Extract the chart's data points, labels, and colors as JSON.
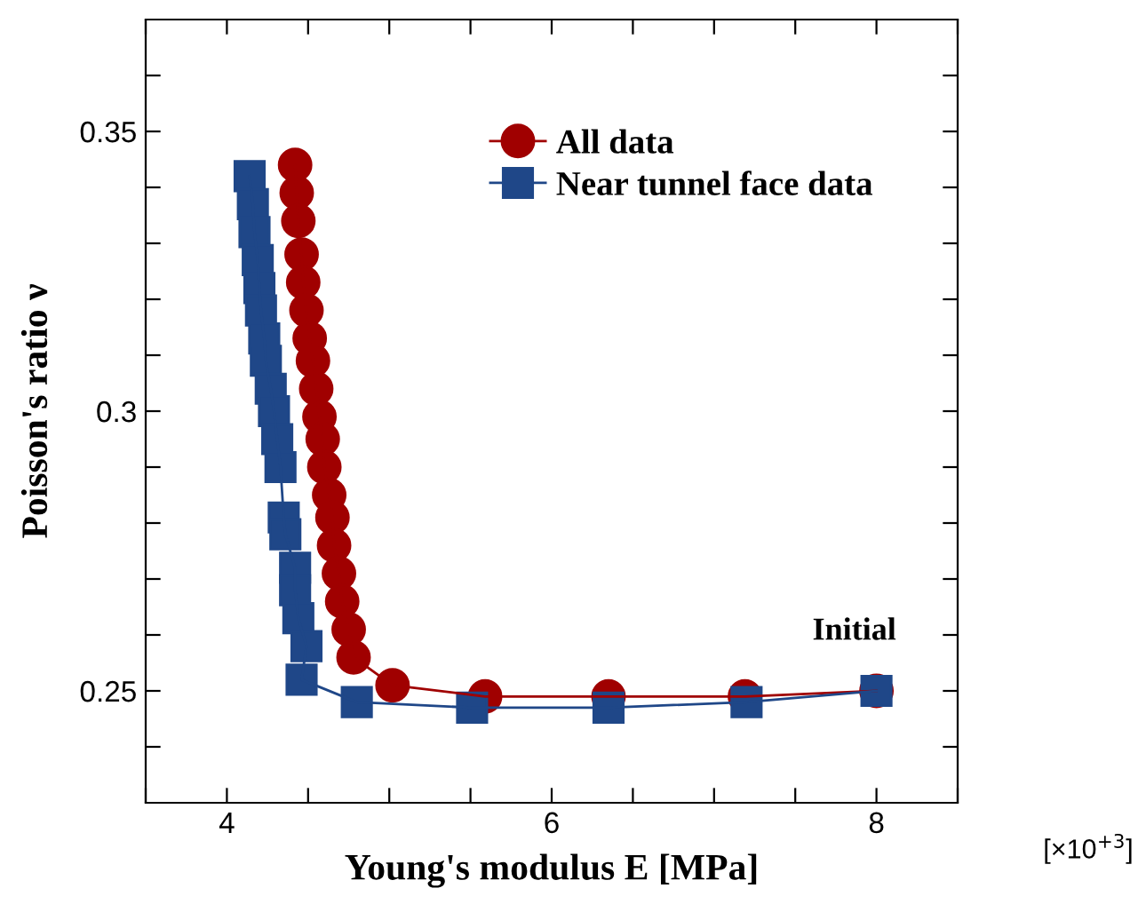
{
  "chart_data": {
    "type": "line",
    "xlabel": "Young's modulus E [MPa]",
    "ylabel": "Poisson's ratio ν",
    "annotations": [
      {
        "text": "Initial",
        "x": 8,
        "y": 0.25
      },
      "[×10$^{+3}$]"
    ],
    "series": [
      {
        "name": "All data",
        "color": "#a00000",
        "marker": "circle",
        "x": [
          4.42,
          4.43,
          4.44,
          4.46,
          4.47,
          4.49,
          4.51,
          4.53,
          4.55,
          4.57,
          4.59,
          4.6,
          4.63,
          4.65,
          4.66,
          4.69,
          4.71,
          4.75,
          4.78,
          5.02,
          5.59,
          6.35,
          7.19,
          8.0
        ],
        "values": [
          0.344,
          0.339,
          0.334,
          0.328,
          0.323,
          0.318,
          0.313,
          0.309,
          0.304,
          0.299,
          0.295,
          0.29,
          0.285,
          0.281,
          0.276,
          0.271,
          0.266,
          0.261,
          0.256,
          0.251,
          0.249,
          0.249,
          0.249,
          0.25
        ]
      },
      {
        "name": "Near tunnel face data",
        "color": "#1f4788",
        "marker": "square",
        "x": [
          4.14,
          4.16,
          4.17,
          4.19,
          4.2,
          4.21,
          4.23,
          4.24,
          4.27,
          4.29,
          4.31,
          4.33,
          4.35,
          4.36,
          4.42,
          4.42,
          4.44,
          4.49,
          4.46,
          4.8,
          5.51,
          6.35,
          7.2,
          8.0
        ],
        "values": [
          0.342,
          0.337,
          0.332,
          0.327,
          0.322,
          0.318,
          0.313,
          0.309,
          0.304,
          0.3,
          0.295,
          0.29,
          0.281,
          0.278,
          0.272,
          0.268,
          0.263,
          0.258,
          0.252,
          0.248,
          0.247,
          0.247,
          0.248,
          0.25
        ]
      }
    ],
    "xlim": [
      3.5,
      8.5
    ],
    "xticks": [
      {
        "value": 3.5,
        "label": null
      },
      4,
      {
        "value": 4.5,
        "label": null
      },
      {
        "value": 5,
        "label": null
      },
      {
        "value": 5.5,
        "label": null
      },
      6,
      {
        "value": 6.5,
        "label": null
      },
      {
        "value": 7,
        "label": null
      },
      {
        "value": 7.5,
        "label": null
      },
      8,
      {
        "value": 8.5,
        "label": null
      }
    ],
    "ylim": [
      0.23,
      0.37
    ],
    "yticks": [
      {
        "value": 0.24,
        "label": null
      },
      {
        "value": 0.25,
        "label": "0.25"
      },
      {
        "value": 0.26,
        "label": null
      },
      {
        "value": 0.27,
        "label": null
      },
      {
        "value": 0.28,
        "label": null
      },
      {
        "value": 0.29,
        "label": null
      },
      {
        "value": 0.3,
        "label": "0.3"
      },
      {
        "value": 0.31,
        "label": null
      },
      {
        "value": 0.32,
        "label": null
      },
      {
        "value": 0.33,
        "label": null
      },
      {
        "value": 0.34,
        "label": null
      },
      {
        "value": 0.35,
        "label": "0.35"
      },
      {
        "value": 0.36,
        "label": null
      }
    ],
    "grid": false,
    "legend": "top",
    "line_style": "solid"
  }
}
